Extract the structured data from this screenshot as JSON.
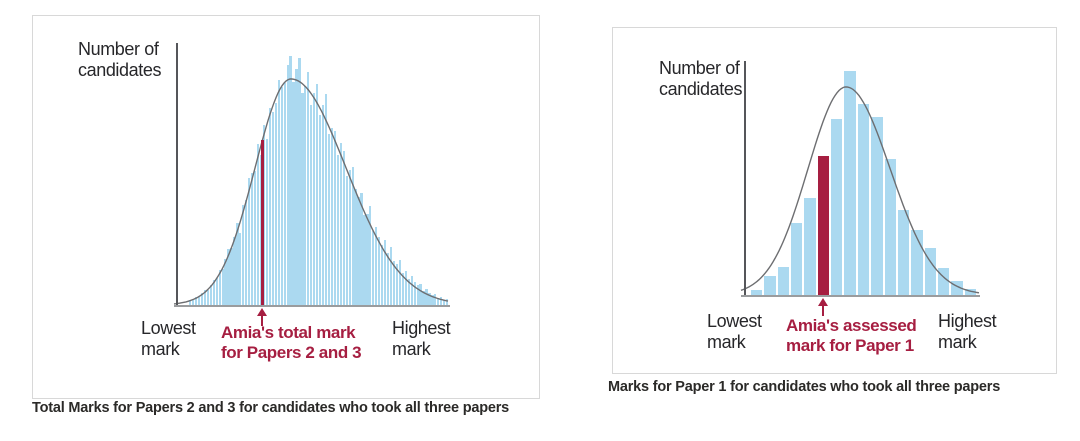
{
  "colors": {
    "highlight": "#a61e41",
    "bar_fill": "#abd9f0",
    "curve": "#6d6e71",
    "y_axis": "#55565a",
    "x_axis": "#9a9c9e",
    "text": "#231f20",
    "box_border": "#d8d8d8"
  },
  "chart_data": [
    {
      "type": "bar",
      "title": "Total Marks for Papers 2 and 3 for candidates who took all three papers",
      "ylabel": "Number of candidates",
      "ylabel_lines": [
        "Number of",
        "candidates"
      ],
      "xlabel": "",
      "x_min_label": "Lowest mark",
      "x_min_label_lines": [
        "Lowest",
        "mark"
      ],
      "x_max_label": "Highest mark",
      "x_max_label_lines": [
        "Highest",
        "mark"
      ],
      "annotation": "Amia's total mark for Papers 2 and 3",
      "annotation_lines": [
        "Amia's total mark",
        "for Papers 2 and 3"
      ],
      "legend": "none",
      "grid": "off",
      "ylim": [
        0,
        1.0
      ],
      "values": [
        0.019,
        0.022,
        0.031,
        0.034,
        0.047,
        0.059,
        0.062,
        0.081,
        0.099,
        0.108,
        0.141,
        0.143,
        0.186,
        0.224,
        0.229,
        0.273,
        0.329,
        0.291,
        0.402,
        0.422,
        0.512,
        0.529,
        0.538,
        0.645,
        0.603,
        0.724,
        0.665,
        0.79,
        0.775,
        0.81,
        0.905,
        0.875,
        0.891,
        0.965,
        1.0,
        0.895,
        0.95,
        0.994,
        0.851,
        0.88,
        0.937,
        0.802,
        0.851,
        0.887,
        0.765,
        0.805,
        0.848,
        0.687,
        0.712,
        0.7,
        0.602,
        0.65,
        0.618,
        0.52,
        0.542,
        0.556,
        0.465,
        0.432,
        0.45,
        0.362,
        0.365,
        0.398,
        0.297,
        0.315,
        0.275,
        0.24,
        0.262,
        0.211,
        0.232,
        0.175,
        0.165,
        0.18,
        0.128,
        0.138,
        0.105,
        0.118,
        0.091,
        0.079,
        0.085,
        0.057,
        0.066,
        0.048,
        0.039,
        0.044,
        0.029,
        0.032,
        0.022,
        0.025
      ],
      "curve": {
        "shape": "skew-normal",
        "center_frac": 0.392,
        "sigma_left_frac": 0.138,
        "sigma_right_frac": 0.212,
        "amplitude": 0.908
      },
      "marker": {
        "style": "line",
        "x_frac": 0.281,
        "height_frac": 0.663
      }
    },
    {
      "type": "bar",
      "title": "Marks for Paper 1 for candidates who took all three papers",
      "ylabel": "Number of candidates",
      "ylabel_lines": [
        "Number of",
        "candidates"
      ],
      "xlabel": "",
      "x_min_label": "Lowest mark",
      "x_min_label_lines": [
        "Lowest",
        "mark"
      ],
      "x_max_label": "Highest mark",
      "x_max_label_lines": [
        "Highest",
        "mark"
      ],
      "annotation": "Amia's assessed mark for Paper 1",
      "annotation_lines": [
        "Amia's assessed",
        "mark for Paper 1"
      ],
      "legend": "none",
      "grid": "off",
      "ylim": [
        0,
        1.0
      ],
      "values": [
        0.022,
        0.085,
        0.125,
        0.321,
        0.433,
        0.621,
        0.786,
        1.0,
        0.853,
        0.795,
        0.607,
        0.379,
        0.29,
        0.21,
        0.121,
        0.063,
        0.027
      ],
      "curve": {
        "shape": "skew-normal",
        "center_frac": 0.419,
        "sigma_left_frac": 0.168,
        "sigma_right_frac": 0.194,
        "amplitude": 0.929
      },
      "marker": {
        "style": "bar",
        "index": 5
      }
    }
  ]
}
